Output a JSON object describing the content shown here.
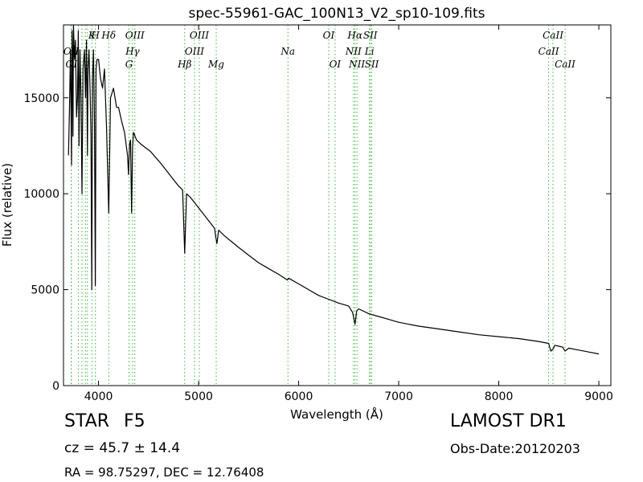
{
  "chart_data": {
    "type": "line",
    "title": "spec-55961-GAC_100N13_V2_sp10-109.fits",
    "xlabel": "Wavelength (Å)",
    "ylabel": "Flux (relative)",
    "xlim": [
      3650,
      9120
    ],
    "ylim": [
      0,
      18800
    ],
    "x_ticks": [
      4000,
      5000,
      6000,
      7000,
      8000,
      9000
    ],
    "y_ticks": [
      0,
      5000,
      10000,
      15000
    ],
    "grid": false,
    "line_color": "#000000",
    "marker_line_color": "#3cb33c",
    "series": [
      {
        "x": [
          3700,
          3710,
          3720,
          3730,
          3735,
          3740,
          3745,
          3750,
          3760,
          3770,
          3780,
          3790,
          3798,
          3805,
          3815,
          3825,
          3835,
          3845,
          3860,
          3870,
          3875,
          3880,
          3889,
          3895,
          3905,
          3915,
          3925,
          3933,
          3940,
          3950,
          3960,
          3968,
          3975,
          3985,
          4000,
          4020,
          4040,
          4060,
          4080,
          4102,
          4120,
          4150,
          4180,
          4200,
          4230,
          4260,
          4290,
          4300,
          4310,
          4320,
          4330,
          4340,
          4350,
          4380,
          4420,
          4470,
          4520,
          4570,
          4620,
          4680,
          4740,
          4800,
          4840,
          4861,
          4880,
          4920,
          4980,
          5040,
          5100,
          5160,
          5170,
          5183,
          5200,
          5260,
          5330,
          5400,
          5500,
          5600,
          5700,
          5800,
          5889,
          5900,
          6000,
          6100,
          6200,
          6300,
          6400,
          6500,
          6540,
          6563,
          6580,
          6600,
          6700,
          6800,
          6900,
          7000,
          7200,
          7400,
          7600,
          7800,
          8000,
          8200,
          8400,
          8498,
          8520,
          8542,
          8560,
          8600,
          8640,
          8662,
          8700,
          8800,
          8900,
          9000
        ],
        "y": [
          12000,
          14500,
          17500,
          11500,
          18500,
          17000,
          13000,
          18800,
          17000,
          18000,
          14000,
          15000,
          18500,
          12500,
          17500,
          15000,
          10000,
          16500,
          17500,
          15000,
          16500,
          18000,
          12000,
          16500,
          17500,
          15500,
          13000,
          5000,
          16000,
          17500,
          13500,
          5200,
          16500,
          17000,
          17000,
          16000,
          15500,
          16500,
          13500,
          9000,
          15000,
          15500,
          14500,
          14500,
          13800,
          13200,
          12000,
          11000,
          12600,
          12800,
          9000,
          12400,
          13200,
          12800,
          12600,
          12400,
          12200,
          11900,
          11600,
          11200,
          10800,
          10400,
          10200,
          6900,
          10000,
          9800,
          9400,
          9000,
          8600,
          8200,
          7800,
          7400,
          8100,
          7800,
          7500,
          7200,
          6800,
          6400,
          6100,
          5800,
          5500,
          5600,
          5300,
          5000,
          4700,
          4500,
          4300,
          4150,
          3800,
          3200,
          3900,
          4000,
          3750,
          3600,
          3450,
          3300,
          3100,
          2950,
          2800,
          2650,
          2550,
          2450,
          2300,
          2200,
          1800,
          1900,
          2100,
          2050,
          2000,
          1800,
          1950,
          1850,
          1750,
          1650
        ]
      }
    ],
    "line_markers": [
      {
        "x": 3727,
        "label": "OII",
        "row": 2
      },
      {
        "x": 3729,
        "label": "OI",
        "row": 3
      },
      {
        "x": 3798,
        "label": "",
        "row": 0
      },
      {
        "x": 3835,
        "label": "",
        "row": 0
      },
      {
        "x": 3869,
        "label": "",
        "row": 0
      },
      {
        "x": 3889,
        "label": "",
        "row": 0
      },
      {
        "x": 3934,
        "label": "K",
        "row": 1
      },
      {
        "x": 3969,
        "label": "H",
        "row": 1
      },
      {
        "x": 4102,
        "label": "Hδ",
        "row": 1
      },
      {
        "x": 4305,
        "label": "G",
        "row": 3
      },
      {
        "x": 4340,
        "label": "Hγ",
        "row": 2
      },
      {
        "x": 4363,
        "label": "OIII",
        "row": 1
      },
      {
        "x": 4861,
        "label": "Hβ",
        "row": 3
      },
      {
        "x": 4959,
        "label": "OIII",
        "row": 2
      },
      {
        "x": 5007,
        "label": "OIII",
        "row": 1
      },
      {
        "x": 5176,
        "label": "Mg",
        "row": 3
      },
      {
        "x": 5893,
        "label": "Na",
        "row": 2
      },
      {
        "x": 6300,
        "label": "OI",
        "row": 1
      },
      {
        "x": 6364,
        "label": "OI",
        "row": 3
      },
      {
        "x": 6548,
        "label": "NII",
        "row": 2
      },
      {
        "x": 6563,
        "label": "Hα",
        "row": 1
      },
      {
        "x": 6583,
        "label": "NII",
        "row": 3
      },
      {
        "x": 6708,
        "label": "Li",
        "row": 2
      },
      {
        "x": 6716,
        "label": "SII",
        "row": 1
      },
      {
        "x": 6731,
        "label": "SII",
        "row": 3
      },
      {
        "x": 8498,
        "label": "CaII",
        "row": 2
      },
      {
        "x": 8542,
        "label": "CaII",
        "row": 1
      },
      {
        "x": 8662,
        "label": "CaII",
        "row": 3
      }
    ]
  },
  "info": {
    "object_class": "STAR",
    "subclass": "F5",
    "cz_text": "cz = 45.7 ± 14.4",
    "radec_text": "RA = 98.75297, DEC = 12.76408",
    "survey": "LAMOST DR1",
    "obs_date": "Obs-Date:20120203"
  }
}
